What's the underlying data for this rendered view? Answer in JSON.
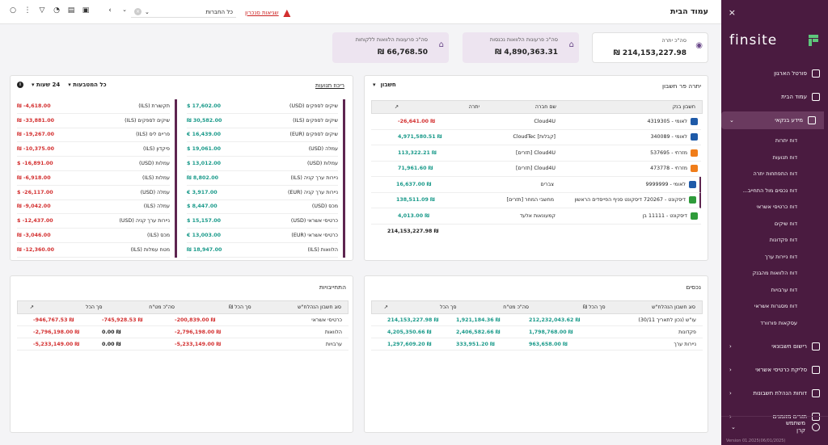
{
  "sidebar": {
    "close_icon": "×",
    "logo_text": "finsite",
    "items": [
      {
        "label": "פורטל הארגון",
        "icon": "building-icon"
      },
      {
        "label": "עמוד הבית",
        "icon": "dashboard-icon"
      },
      {
        "label": "מידע בנקאי",
        "icon": "copy-icon"
      }
    ],
    "subitems": [
      "דוח יתרות",
      "דוח תנועות",
      "דוח התפתחות יתרה",
      "דוח נכסים מול התחייב...",
      "דוח כרטיסי אשראי",
      "דוח שיקים",
      "דוח פקדונות",
      "דוח ניירות ערך",
      "דוח הלוואות מהבנק",
      "דוח ערבויות",
      "דוח מסגרות אשראי",
      "עסקאות פורוורד"
    ],
    "bottom_items": [
      {
        "label": "רישום חשבונאי",
        "icon": "ledger-icon"
      },
      {
        "label": "סליקת כרטיסי אשראי",
        "icon": "coin-icon"
      },
      {
        "label": "דוחות הנהלת חשבונות",
        "icon": "calculator-icon"
      },
      {
        "label": "תזרים מזומנים",
        "icon": "chart-icon"
      }
    ],
    "user": {
      "line1": "משתמש",
      "line2": "קרן"
    },
    "version": "Version 01.2025(06/01/2025)"
  },
  "topbar": {
    "title": "עמוד הבית",
    "warning": "שגיאות סנכרון",
    "company_select": "כל החברות"
  },
  "kpis": [
    {
      "label": "סה\"כ יתרה",
      "value": "₪ 214,153,227.98"
    },
    {
      "label": "סה\"כ פרעונות הלוואות נכנסות",
      "value": "₪ 4,890,363.31"
    },
    {
      "label": "סה\"כ פרעונות הלוואות ללקוחות",
      "value": "₪ 66,768.50"
    }
  ],
  "balances": {
    "title": "יתרה פר חשבון",
    "dropdown": "חשבון",
    "headers": [
      "חשבון בנק",
      "שם חברה",
      "יתרה"
    ],
    "rows": [
      {
        "account": "לאומי - 4319305",
        "company": "Cloud4U",
        "balance": "-26,641.00 ₪",
        "neg": true,
        "bank": "#1e5aa8"
      },
      {
        "account": "לאומי - 340089",
        "company": "[קבלות] CloudTec",
        "balance": "4,971,580.51 ₪",
        "neg": false,
        "bank": "#1e5aa8"
      },
      {
        "account": "מזרחי - 537695",
        "company": "Cloud4U [תזרים]",
        "balance": "113,322.21 ₪",
        "neg": false,
        "bank": "#f07d1a"
      },
      {
        "account": "מזרחי - 473778",
        "company": "Cloud4U [תזרים]",
        "balance": "71,961.60 ₪",
        "neg": false,
        "bank": "#f07d1a"
      },
      {
        "account": "לאומי - 9999999",
        "company": "צברים",
        "balance": "16,637.00 ₪",
        "neg": false,
        "bank": "#1e5aa8"
      },
      {
        "account": "דיסקונט - 720267 דיסקונט סניף הפייסדים הראשון",
        "company": "מחשבי המחר [תזרים]",
        "balance": "138,511.09 ₪",
        "neg": false,
        "bank": "#2e9b3a"
      },
      {
        "account": "דיסקונט - 11111 בן",
        "company": "קמעונאות אלעד",
        "balance": "4,013.00 ₪",
        "neg": false,
        "bank": "#2e9b3a"
      }
    ],
    "total": "214,153,227.98 ₪"
  },
  "activity": {
    "link": "ריכוז תנועות",
    "filter_period": "24 שעות",
    "filter_currency": "כל המטבעות",
    "left_col": [
      {
        "label": "תקשורת (ILS)",
        "value": "₪ -4,618.00"
      },
      {
        "label": "שיקים לספקים (ILS)",
        "value": "₪ -33,881.00"
      },
      {
        "label": "פריים ליס (ILS)",
        "value": "₪ -19,267.00"
      },
      {
        "label": "פיקדון (ILS)",
        "value": "₪ -10,375.00"
      },
      {
        "label": "עמלות (USD)",
        "value": "$ -16,891.00"
      },
      {
        "label": "עמלות (ILS)",
        "value": "₪ -6,918.00"
      },
      {
        "label": "עמלה (USD)",
        "value": "$ -26,117.00"
      },
      {
        "label": "עמלה (ILS)",
        "value": "₪ -9,042.00"
      },
      {
        "label": "ניירות ערך קניה (USD)",
        "value": "$ -12,437.00"
      },
      {
        "label": "מכס (ILS)",
        "value": "₪ -3,046.00"
      },
      {
        "label": "מטח עמלות (ILS)",
        "value": "₪ -12,360.00"
      }
    ],
    "right_col": [
      {
        "label": "שיקים לספקים (USD)",
        "value": "$ 17,602.00"
      },
      {
        "label": "שיקים לספקים (ILS)",
        "value": "₪ 30,582.00"
      },
      {
        "label": "שיקים לספקים (EUR)",
        "value": "€ 16,439.00"
      },
      {
        "label": "עמלה (USD)",
        "value": "$ 19,061.00"
      },
      {
        "label": "עמלות (USD)",
        "value": "$ 13,012.00"
      },
      {
        "label": "ניירות ערך קניה (ILS)",
        "value": "₪ 8,802.00"
      },
      {
        "label": "ניירות ערך קניה (EUR)",
        "value": "€ 3,917.00"
      },
      {
        "label": "מכס (USD)",
        "value": "$ 8,447.00"
      },
      {
        "label": "כרטיסי אשראי (USD)",
        "value": "$ 15,157.00"
      },
      {
        "label": "כרטיסי אשראי (EUR)",
        "value": "€ 13,003.00"
      },
      {
        "label": "הלוואות (ILS)",
        "value": "₪ 18,947.00"
      }
    ]
  },
  "assets": {
    "title": "נכסים",
    "headers": [
      "סוג חשבון הנהלח\"ש",
      "סך הכל ₪",
      "סה\"כ מט\"ח",
      "סך הכל"
    ],
    "rows": [
      {
        "type": "עו\"ש (נכון לתאריך 30/11)",
        "ils": "212,232,043.62 ₪",
        "fx": "1,921,184.36 ₪",
        "total": "214,153,227.98 ₪"
      },
      {
        "type": "פקדונות",
        "ils": "1,798,768.00 ₪",
        "fx": "2,406,582.66 ₪",
        "total": "4,205,350.66 ₪"
      },
      {
        "type": "ניירות ערך",
        "ils": "963,658.00 ₪",
        "fx": "333,951.20 ₪",
        "total": "1,297,609.20 ₪"
      }
    ]
  },
  "liabilities": {
    "title": "התחייבויות",
    "headers": [
      "סוג חשבון הנהלח\"ש",
      "סך הכל ₪",
      "סה\"כ מט\"ח",
      "סך הכל"
    ],
    "rows": [
      {
        "type": "כרטיסי אשראי",
        "ils": "-200,839.00 ₪",
        "fx": "-745,928.53 ₪",
        "total": "-946,767.53 ₪",
        "fx_neg": true
      },
      {
        "type": "הלוואות",
        "ils": "-2,796,198.00 ₪",
        "fx": "0.00 ₪",
        "total": "-2,796,198.00 ₪",
        "fx_neg": false
      },
      {
        "type": "ערבויות",
        "ils": "-5,233,149.00 ₪",
        "fx": "0.00 ₪",
        "total": "-5,233,149.00 ₪",
        "fx_neg": false
      }
    ]
  }
}
